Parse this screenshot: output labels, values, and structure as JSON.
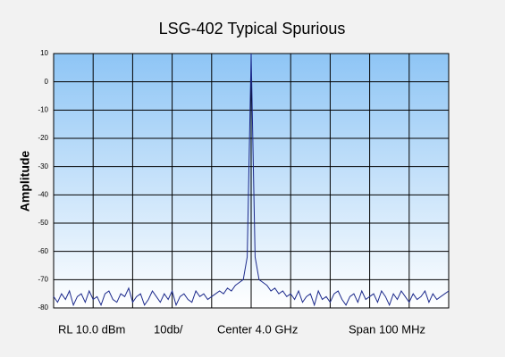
{
  "chart_data": {
    "type": "line",
    "title": "LSG-402 Typical Spurious",
    "ylabel": "Amplitude",
    "annotations": [
      "RL 10.0 dBm",
      "10db/",
      "Center 4.0 GHz",
      "Span 100 MHz"
    ],
    "ylim": [
      -80,
      10
    ],
    "yticks": [
      10,
      0,
      -10,
      -20,
      -30,
      -40,
      -50,
      -60,
      -70,
      -80
    ],
    "grid": true,
    "series": [
      {
        "color": "#1c2a8c",
        "values": [
          -76,
          -78,
          -75,
          -77,
          -74,
          -79,
          -76,
          -75,
          -78,
          -74,
          -77,
          -76,
          -79,
          -75,
          -74,
          -77,
          -78,
          -75,
          -76,
          -73,
          -78,
          -76,
          -75,
          -79,
          -77,
          -74,
          -76,
          -78,
          -75,
          -77,
          -74,
          -79,
          -76,
          -75,
          -77,
          -78,
          -74,
          -76,
          -75,
          -77,
          -76,
          -75,
          -74,
          -75,
          -73,
          -74,
          -72,
          -71,
          -70,
          -62,
          10,
          -62,
          -70,
          -71,
          -72,
          -74,
          -73,
          -75,
          -74,
          -76,
          -75,
          -77,
          -74,
          -78,
          -76,
          -75,
          -79,
          -74,
          -77,
          -76,
          -78,
          -75,
          -74,
          -77,
          -79,
          -76,
          -75,
          -78,
          -74,
          -77,
          -76,
          -75,
          -78,
          -74,
          -76,
          -79,
          -75,
          -77,
          -74,
          -76,
          -78,
          -75,
          -77,
          -76,
          -74,
          -78,
          -75,
          -77,
          -76,
          -75,
          -74
        ]
      }
    ]
  }
}
